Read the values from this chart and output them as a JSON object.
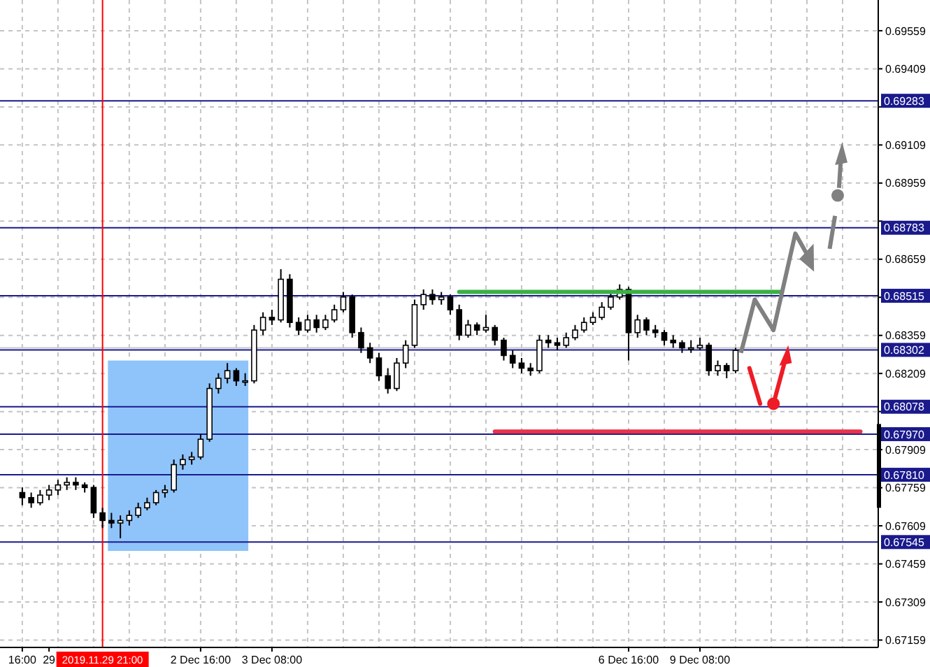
{
  "chart_data": {
    "type": "candlestick",
    "ylim": [
      0.6713,
      0.6968
    ],
    "categories": [
      "16:00",
      null,
      null,
      "29",
      null,
      null,
      null,
      null,
      null,
      "2019.11.29 21:00",
      null,
      null,
      null,
      null,
      null,
      null,
      null,
      null,
      null,
      null,
      "2 Dec 16:00",
      null,
      null,
      null,
      null,
      null,
      null,
      null,
      "3 Dec 08:00",
      null,
      null,
      null,
      null,
      null,
      null,
      null,
      null,
      null,
      null,
      null,
      null,
      null,
      null,
      null,
      null,
      null,
      null,
      null,
      null,
      null,
      null,
      null,
      null,
      null,
      null,
      null,
      null,
      null,
      null,
      null,
      null,
      null,
      null,
      null,
      null,
      null,
      null,
      null,
      "6 Dec 16:00",
      null,
      null,
      null,
      null,
      null,
      null,
      null,
      "9 Dec 08:00",
      null,
      null,
      null,
      null,
      null,
      null,
      null,
      null,
      null,
      null,
      null,
      null,
      null,
      null,
      null,
      null,
      null,
      null,
      null
    ],
    "yticks": [
      0.69559,
      0.69409,
      {
        "value": 0.69259,
        "label": null
      },
      0.69109,
      0.68959,
      {
        "value": 0.68809,
        "label": null
      },
      0.68659,
      {
        "value": 0.68509,
        "label": null
      },
      0.68359,
      0.68209,
      {
        "value": 0.68059,
        "label": null
      },
      0.67909,
      0.67759,
      0.67609,
      0.67459,
      0.67309,
      0.67159
    ],
    "grid": true,
    "ohlc": [
      [
        0.6774,
        0.6776,
        0.6769,
        0.6772
      ],
      [
        0.6772,
        0.6774,
        0.6768,
        0.677
      ],
      [
        0.677,
        0.6775,
        0.6769,
        0.6773
      ],
      [
        0.6773,
        0.6777,
        0.6771,
        0.6775
      ],
      [
        0.6775,
        0.6779,
        0.6773,
        0.6777
      ],
      [
        0.6777,
        0.678,
        0.6775,
        0.6778
      ],
      [
        0.6778,
        0.678,
        0.6775,
        0.6777
      ],
      [
        0.6777,
        0.6778,
        0.6774,
        0.6776
      ],
      [
        0.6776,
        0.6777,
        0.6764,
        0.6766
      ],
      [
        0.6766,
        0.6768,
        0.676,
        0.6763
      ],
      [
        0.6763,
        0.6766,
        0.676,
        0.6762
      ],
      [
        0.6762,
        0.6765,
        0.6756,
        0.6763
      ],
      [
        0.6763,
        0.6767,
        0.6761,
        0.6765
      ],
      [
        0.6765,
        0.677,
        0.6764,
        0.6768
      ],
      [
        0.6768,
        0.6772,
        0.6767,
        0.677
      ],
      [
        0.677,
        0.6775,
        0.6769,
        0.6774
      ],
      [
        0.6774,
        0.6777,
        0.6772,
        0.6775
      ],
      [
        0.6775,
        0.6787,
        0.6774,
        0.6785
      ],
      [
        0.6785,
        0.6789,
        0.6783,
        0.6787
      ],
      [
        0.6787,
        0.679,
        0.6785,
        0.6788
      ],
      [
        0.6788,
        0.6797,
        0.6787,
        0.6795
      ],
      [
        0.6795,
        0.6817,
        0.6794,
        0.6815
      ],
      [
        0.6815,
        0.6821,
        0.6813,
        0.6819
      ],
      [
        0.6819,
        0.6825,
        0.6817,
        0.6822
      ],
      [
        0.6822,
        0.6823,
        0.6816,
        0.6818
      ],
      [
        0.6818,
        0.6821,
        0.6816,
        0.6818
      ],
      [
        0.6818,
        0.684,
        0.6817,
        0.6838
      ],
      [
        0.6838,
        0.6845,
        0.6836,
        0.6843
      ],
      [
        0.6843,
        0.6846,
        0.684,
        0.6842
      ],
      [
        0.6842,
        0.6862,
        0.6841,
        0.6858
      ],
      [
        0.6858,
        0.686,
        0.6839,
        0.6841
      ],
      [
        0.6841,
        0.6843,
        0.6836,
        0.6838
      ],
      [
        0.6838,
        0.6844,
        0.6837,
        0.6842
      ],
      [
        0.6842,
        0.6844,
        0.6837,
        0.6839
      ],
      [
        0.6839,
        0.6844,
        0.6838,
        0.6842
      ],
      [
        0.6842,
        0.6848,
        0.6841,
        0.6846
      ],
      [
        0.6846,
        0.6853,
        0.6845,
        0.6851
      ],
      [
        0.6851,
        0.6852,
        0.6835,
        0.6837
      ],
      [
        0.6837,
        0.6839,
        0.6829,
        0.6831
      ],
      [
        0.6831,
        0.6833,
        0.6825,
        0.6827
      ],
      [
        0.6827,
        0.6829,
        0.6818,
        0.682
      ],
      [
        0.682,
        0.6823,
        0.6813,
        0.6815
      ],
      [
        0.6815,
        0.6827,
        0.6814,
        0.6825
      ],
      [
        0.6825,
        0.6834,
        0.6823,
        0.6832
      ],
      [
        0.6832,
        0.685,
        0.6831,
        0.6848
      ],
      [
        0.6848,
        0.6854,
        0.6846,
        0.6852
      ],
      [
        0.6852,
        0.6854,
        0.6848,
        0.685
      ],
      [
        0.685,
        0.6853,
        0.6848,
        0.6851
      ],
      [
        0.6851,
        0.6852,
        0.6844,
        0.6846
      ],
      [
        0.6846,
        0.6848,
        0.6834,
        0.6836
      ],
      [
        0.6836,
        0.6842,
        0.6835,
        0.684
      ],
      [
        0.684,
        0.6841,
        0.6836,
        0.6838
      ],
      [
        0.6838,
        0.6844,
        0.6837,
        0.6839
      ],
      [
        0.6839,
        0.684,
        0.6832,
        0.6834
      ],
      [
        0.6834,
        0.6835,
        0.6826,
        0.6828
      ],
      [
        0.6828,
        0.683,
        0.6823,
        0.6825
      ],
      [
        0.6825,
        0.6827,
        0.6821,
        0.6823
      ],
      [
        0.6823,
        0.6825,
        0.682,
        0.6822
      ],
      [
        0.6822,
        0.6836,
        0.6821,
        0.6834
      ],
      [
        0.6834,
        0.6836,
        0.6831,
        0.6833
      ],
      [
        0.6833,
        0.6835,
        0.683,
        0.6832
      ],
      [
        0.6832,
        0.6837,
        0.6831,
        0.6835
      ],
      [
        0.6835,
        0.684,
        0.6834,
        0.6838
      ],
      [
        0.6838,
        0.6843,
        0.6837,
        0.6841
      ],
      [
        0.6841,
        0.6845,
        0.684,
        0.6843
      ],
      [
        0.6843,
        0.6849,
        0.6842,
        0.6847
      ],
      [
        0.6847,
        0.6853,
        0.6846,
        0.6851
      ],
      [
        0.6851,
        0.6856,
        0.685,
        0.6854
      ],
      [
        0.6854,
        0.6855,
        0.6826,
        0.6837
      ],
      [
        0.6837,
        0.6844,
        0.6835,
        0.6842
      ],
      [
        0.6842,
        0.6843,
        0.6836,
        0.6838
      ],
      [
        0.6838,
        0.684,
        0.6835,
        0.6837
      ],
      [
        0.6837,
        0.6838,
        0.6832,
        0.6834
      ],
      [
        0.6834,
        0.6836,
        0.6831,
        0.6833
      ],
      [
        0.6833,
        0.6834,
        0.6829,
        0.6831
      ],
      [
        0.6831,
        0.6834,
        0.6829,
        0.6831
      ],
      [
        0.6831,
        0.6835,
        0.683,
        0.6832
      ],
      [
        0.6832,
        0.6833,
        0.682,
        0.6822
      ],
      [
        0.6822,
        0.6826,
        0.682,
        0.6824
      ],
      [
        0.6824,
        0.6825,
        0.6819,
        0.6822
      ],
      [
        0.6822,
        0.6831,
        0.6821,
        0.683
      ],
      null,
      null,
      null,
      null,
      null,
      null,
      null,
      null,
      null,
      null,
      null,
      null,
      null,
      null,
      null
    ],
    "series": [
      {
        "type": "line",
        "color": "#3cb043",
        "values": [
          null,
          null,
          null,
          null,
          null,
          null,
          null,
          null,
          null,
          null,
          null,
          null,
          null,
          null,
          null,
          null,
          null,
          null,
          null,
          null,
          null,
          null,
          null,
          null,
          null,
          null,
          null,
          null,
          null,
          null,
          null,
          null,
          null,
          null,
          null,
          null,
          null,
          null,
          null,
          null,
          null,
          null,
          null,
          null,
          null,
          null,
          null,
          null,
          null,
          0.6853,
          0.6853,
          0.6853,
          0.6853,
          0.6853,
          0.6853,
          0.6853,
          0.6853,
          0.6853,
          0.6853,
          0.6853,
          0.6853,
          0.6853,
          0.6853,
          0.6853,
          0.6853,
          0.6853,
          0.6853,
          0.6853,
          0.6853,
          0.6853,
          0.6853,
          0.6853,
          0.6853,
          0.6853,
          0.6853,
          0.6853,
          0.6853,
          0.6853,
          0.6853,
          0.6853,
          0.6853,
          0.6853,
          0.6853,
          0.6853,
          0.6853,
          0.6853,
          null,
          null,
          null,
          null,
          null,
          null,
          null,
          null,
          null,
          null
        ]
      },
      {
        "type": "line",
        "color": "#e8334a",
        "values": [
          null,
          null,
          null,
          null,
          null,
          null,
          null,
          null,
          null,
          null,
          null,
          null,
          null,
          null,
          null,
          null,
          null,
          null,
          null,
          null,
          null,
          null,
          null,
          null,
          null,
          null,
          null,
          null,
          null,
          null,
          null,
          null,
          null,
          null,
          null,
          null,
          null,
          null,
          null,
          null,
          null,
          null,
          null,
          null,
          null,
          null,
          null,
          null,
          null,
          null,
          null,
          null,
          null,
          0.6798,
          0.6798,
          0.6798,
          0.6798,
          0.6798,
          0.6798,
          0.6798,
          0.6798,
          0.6798,
          0.6798,
          0.6798,
          0.6798,
          0.6798,
          0.6798,
          0.6798,
          0.6798,
          0.6798,
          0.6798,
          0.6798,
          0.6798,
          0.6798,
          0.6798,
          0.6798,
          0.6798,
          0.6798,
          0.6798,
          0.6798,
          0.6798,
          0.6798,
          0.6798,
          0.6798,
          0.6798,
          0.6798,
          0.6798,
          0.6798,
          0.6798,
          0.6798,
          0.6798,
          0.6798,
          0.6798,
          0.6798,
          0.6798,
          null
        ]
      }
    ],
    "ref_lines": [
      {
        "axis": "y",
        "value": 0.69283,
        "label": "0.69283",
        "color": "#1a1a8c"
      },
      {
        "axis": "y",
        "value": 0.68783,
        "label": "0.68783",
        "color": "#1a1a8c"
      },
      {
        "axis": "y",
        "value": 0.68515,
        "label": "0.68515",
        "color": "#1a1a8c"
      },
      {
        "axis": "y",
        "value": 0.6831,
        "color": "#c8c8c8"
      },
      {
        "axis": "y",
        "value": 0.68302,
        "label": "0.68302",
        "color": "#1a1a8c"
      },
      {
        "axis": "y",
        "value": 0.68078,
        "label": "0.68078",
        "color": "#1a1a8c"
      },
      {
        "axis": "y",
        "value": 0.6797,
        "label": "0.67970",
        "color": "#1a1a8c"
      },
      {
        "axis": "y",
        "value": 0.6781,
        "label": "0.67810",
        "color": "#1a1a8c"
      },
      {
        "axis": "y",
        "value": 0.67545,
        "label": "0.67545",
        "color": "#1a1a8c"
      },
      {
        "axis": "x",
        "value": "2019.11.29 21:00",
        "color": "#ff0000"
      }
    ]
  }
}
